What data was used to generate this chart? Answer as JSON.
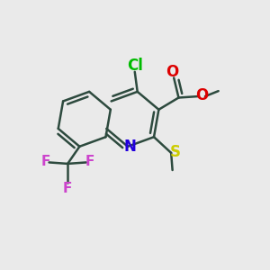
{
  "bg_color": "#eaeaea",
  "bond_color": "#2d4a3e",
  "bond_width": 1.8,
  "atom_colors": {
    "Cl": "#00bb00",
    "O": "#dd0000",
    "N": "#2200dd",
    "S": "#cccc00",
    "F": "#cc44cc",
    "C": "#2d4a3e"
  },
  "font_size": 12,
  "ring_r": 0.105
}
